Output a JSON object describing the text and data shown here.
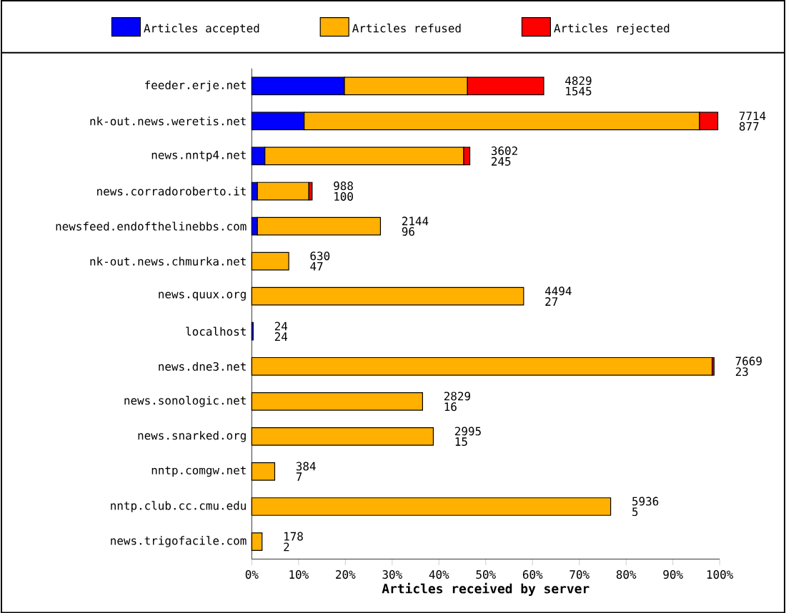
{
  "chart_data": {
    "type": "bar",
    "orientation": "horizontal",
    "stacked": true,
    "xlabel": "Articles received by server",
    "legend": "top",
    "grid": false,
    "categories": [
      "feeder.erje.net",
      "nk-out.news.weretis.net",
      "news.nntp4.net",
      "news.corradoroberto.it",
      "newsfeed.endofthelinebbs.com",
      "nk-out.news.chmurka.net",
      "news.quux.org",
      "localhost",
      "news.dne3.net",
      "news.sonologic.net",
      "news.snarked.org",
      "nntp.comgw.net",
      "nntp.club.cc.cmu.edu",
      "news.trigofacile.com"
    ],
    "series": [
      {
        "name": "Articles accepted",
        "color": "#0000ff",
        "values": [
          19.8,
          11.2,
          2.8,
          1.2,
          1.2,
          null,
          null,
          0.3,
          null,
          null,
          null,
          null,
          null,
          null
        ]
      },
      {
        "name": "Articles refused",
        "color": "#ffb000",
        "values": [
          26.3,
          84.5,
          42.5,
          11.0,
          26.3,
          7.9,
          58.1,
          null,
          98.4,
          36.5,
          38.8,
          4.9,
          76.7,
          2.2
        ]
      },
      {
        "name": "Articles rejected",
        "color": "#ff0000",
        "values": [
          16.3,
          3.9,
          1.3,
          0.7,
          null,
          null,
          null,
          null,
          0.4,
          null,
          null,
          null,
          null,
          null
        ]
      }
    ],
    "xlim": [
      0,
      100
    ],
    "xticks": [
      {
        "value": 0,
        "label": "0%"
      },
      {
        "value": 10,
        "label": "10%"
      },
      {
        "value": 20,
        "label": "20%"
      },
      {
        "value": 30,
        "label": "30%"
      },
      {
        "value": 40,
        "label": "40%"
      },
      {
        "value": 50,
        "label": "50%"
      },
      {
        "value": 60,
        "label": "60%"
      },
      {
        "value": 70,
        "label": "70%"
      },
      {
        "value": 80,
        "label": "80%"
      },
      {
        "value": 90,
        "label": "90%"
      },
      {
        "value": 100,
        "label": "100%"
      }
    ],
    "annotations": [
      {
        "text": "4829",
        "x": 62.4,
        "y": "feeder.erje.net"
      },
      {
        "text": "1545",
        "x": 62.4,
        "y": "feeder.erje.net"
      },
      {
        "text": "7714",
        "x": 99.6,
        "y": "nk-out.news.weretis.net"
      },
      {
        "text": "877",
        "x": 99.6,
        "y": "nk-out.news.weretis.net"
      },
      {
        "text": "3602",
        "x": 46.6,
        "y": "news.nntp4.net"
      },
      {
        "text": "245",
        "x": 46.6,
        "y": "news.nntp4.net"
      },
      {
        "text": "988",
        "x": 12.9,
        "y": "news.corradoroberto.it"
      },
      {
        "text": "100",
        "x": 12.9,
        "y": "news.corradoroberto.it"
      },
      {
        "text": "2144",
        "x": 27.5,
        "y": "newsfeed.endofthelinebbs.com"
      },
      {
        "text": "96",
        "x": 27.5,
        "y": "newsfeed.endofthelinebbs.com"
      },
      {
        "text": "630",
        "x": 7.9,
        "y": "nk-out.news.chmurka.net"
      },
      {
        "text": "47",
        "x": 7.9,
        "y": "nk-out.news.chmurka.net"
      },
      {
        "text": "4494",
        "x": 58.1,
        "y": "news.quux.org"
      },
      {
        "text": "27",
        "x": 58.1,
        "y": "news.quux.org"
      },
      {
        "text": "24",
        "x": 0.3,
        "y": "localhost"
      },
      {
        "text": "24",
        "x": 0.3,
        "y": "localhost"
      },
      {
        "text": "7669",
        "x": 98.8,
        "y": "news.dne3.net"
      },
      {
        "text": "23",
        "x": 98.8,
        "y": "news.dne3.net"
      },
      {
        "text": "2829",
        "x": 36.5,
        "y": "news.sonologic.net"
      },
      {
        "text": "16",
        "x": 36.5,
        "y": "news.sonologic.net"
      },
      {
        "text": "2995",
        "x": 38.8,
        "y": "news.snarked.org"
      },
      {
        "text": "15",
        "x": 38.8,
        "y": "news.snarked.org"
      },
      {
        "text": "384",
        "x": 4.9,
        "y": "nntp.comgw.net"
      },
      {
        "text": "7",
        "x": 4.9,
        "y": "nntp.comgw.net"
      },
      {
        "text": "5936",
        "x": 76.7,
        "y": "nntp.club.cc.cmu.edu"
      },
      {
        "text": "5",
        "x": 76.7,
        "y": "nntp.club.cc.cmu.edu"
      },
      {
        "text": "178",
        "x": 2.2,
        "y": "news.trigofacile.com"
      },
      {
        "text": "2",
        "x": 2.2,
        "y": "news.trigofacile.com"
      }
    ]
  }
}
